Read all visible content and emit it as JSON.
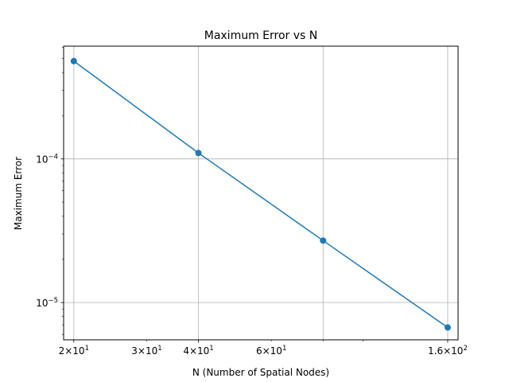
{
  "chart_data": {
    "type": "line",
    "title": "Maximum Error vs N",
    "xlabel": "N (Number of Spatial Nodes)",
    "ylabel": "Maximum Error",
    "x_scale": "log",
    "y_scale": "log",
    "x": [
      20,
      40,
      80,
      160
    ],
    "series": [
      {
        "values": [
          0.00048,
          0.00011,
          2.7e-05,
          6.7e-06
        ],
        "color": "#1f77b4",
        "marker": "circle"
      }
    ],
    "xlim": [
      18.9,
      169.5
    ],
    "ylim": [
      5.5e-06,
      0.00061
    ],
    "x_major_ticks": [
      {
        "value": 20,
        "base": "2×10",
        "exp": "1"
      },
      {
        "value": 40,
        "base": "4×10",
        "exp": "1"
      },
      {
        "value": 160,
        "base": "1.6×10",
        "exp": "2"
      }
    ],
    "x_minor_ticks": [
      {
        "value": 30,
        "base": "3×10",
        "exp": "1"
      },
      {
        "value": 60,
        "base": "6×10",
        "exp": "1"
      },
      {
        "value": 80,
        "base": "",
        "exp": ""
      },
      {
        "value": 100,
        "base": "",
        "exp": ""
      }
    ],
    "y_major_ticks": [
      {
        "value": 1e-05,
        "base": "10",
        "exp": "−5"
      },
      {
        "value": 0.0001,
        "base": "10",
        "exp": "−4"
      }
    ],
    "x_grid_values": [
      20,
      40,
      80,
      160
    ],
    "grid": true,
    "legend": "none"
  }
}
